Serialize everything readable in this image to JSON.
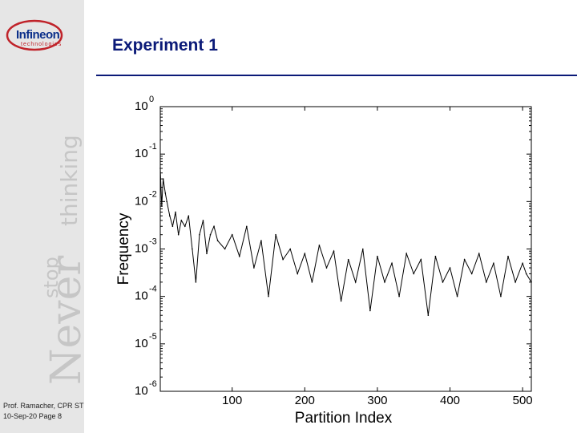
{
  "slide": {
    "title": "Experiment 1",
    "footer_line1": "Prof. Ramacher, CPR ST",
    "footer_line2": "10-Sep-20 Page 8"
  },
  "logo": {
    "name": "Infineon",
    "sub": "technologies"
  },
  "tagline": {
    "word_never": "Never",
    "word_stop": "stop",
    "word_thinking": "thinking"
  },
  "colors": {
    "title": "#0b1a78",
    "sidebar": "#e6e6e6",
    "logo_blue": "#0b2f8a",
    "logo_red": "#c0232a",
    "series": "#000000"
  },
  "chart_data": {
    "type": "line",
    "title": "",
    "xlabel": "Partition Index",
    "ylabel": "Frequency",
    "xlim": [
      1,
      512
    ],
    "ylim": [
      1e-06,
      1
    ],
    "yscale": "log",
    "xticks": [
      100,
      200,
      300,
      400,
      500
    ],
    "yticks": [
      {
        "base": "10",
        "exp": "0"
      },
      {
        "base": "10",
        "exp": "-1"
      },
      {
        "base": "10",
        "exp": "-2"
      },
      {
        "base": "10",
        "exp": "-3"
      },
      {
        "base": "10",
        "exp": "-4"
      },
      {
        "base": "10",
        "exp": "-5"
      },
      {
        "base": "10",
        "exp": "-6"
      }
    ],
    "grid": false,
    "series": [
      {
        "x": [
          1,
          3,
          5,
          8,
          10,
          14,
          18,
          22,
          26,
          30,
          35,
          40,
          45,
          50,
          55,
          60,
          65,
          70,
          75,
          80,
          90,
          100,
          110,
          120,
          130,
          140,
          150,
          160,
          170,
          180,
          190,
          200,
          210,
          220,
          230,
          240,
          250,
          260,
          270,
          280,
          290,
          300,
          310,
          320,
          330,
          340,
          350,
          360,
          370,
          380,
          390,
          400,
          410,
          420,
          430,
          440,
          450,
          460,
          470,
          480,
          490,
          500,
          505,
          512
        ],
        "y": [
          0.05,
          0.008,
          0.03,
          0.015,
          0.01,
          0.005,
          0.003,
          0.006,
          0.002,
          0.004,
          0.003,
          0.005,
          0.001,
          0.0002,
          0.002,
          0.004,
          0.0008,
          0.002,
          0.003,
          0.0015,
          0.001,
          0.002,
          0.0007,
          0.003,
          0.0004,
          0.0015,
          0.0001,
          0.002,
          0.0006,
          0.001,
          0.0003,
          0.0008,
          0.0002,
          0.0012,
          0.0004,
          0.0009,
          8e-05,
          0.0006,
          0.0002,
          0.001,
          5e-05,
          0.0007,
          0.0002,
          0.0005,
          0.0001,
          0.0008,
          0.0003,
          0.0006,
          4e-05,
          0.0007,
          0.0002,
          0.0004,
          0.0001,
          0.0006,
          0.0003,
          0.0008,
          0.0002,
          0.0005,
          0.0001,
          0.0007,
          0.0002,
          0.0005,
          0.0003,
          0.0002
        ]
      }
    ]
  }
}
